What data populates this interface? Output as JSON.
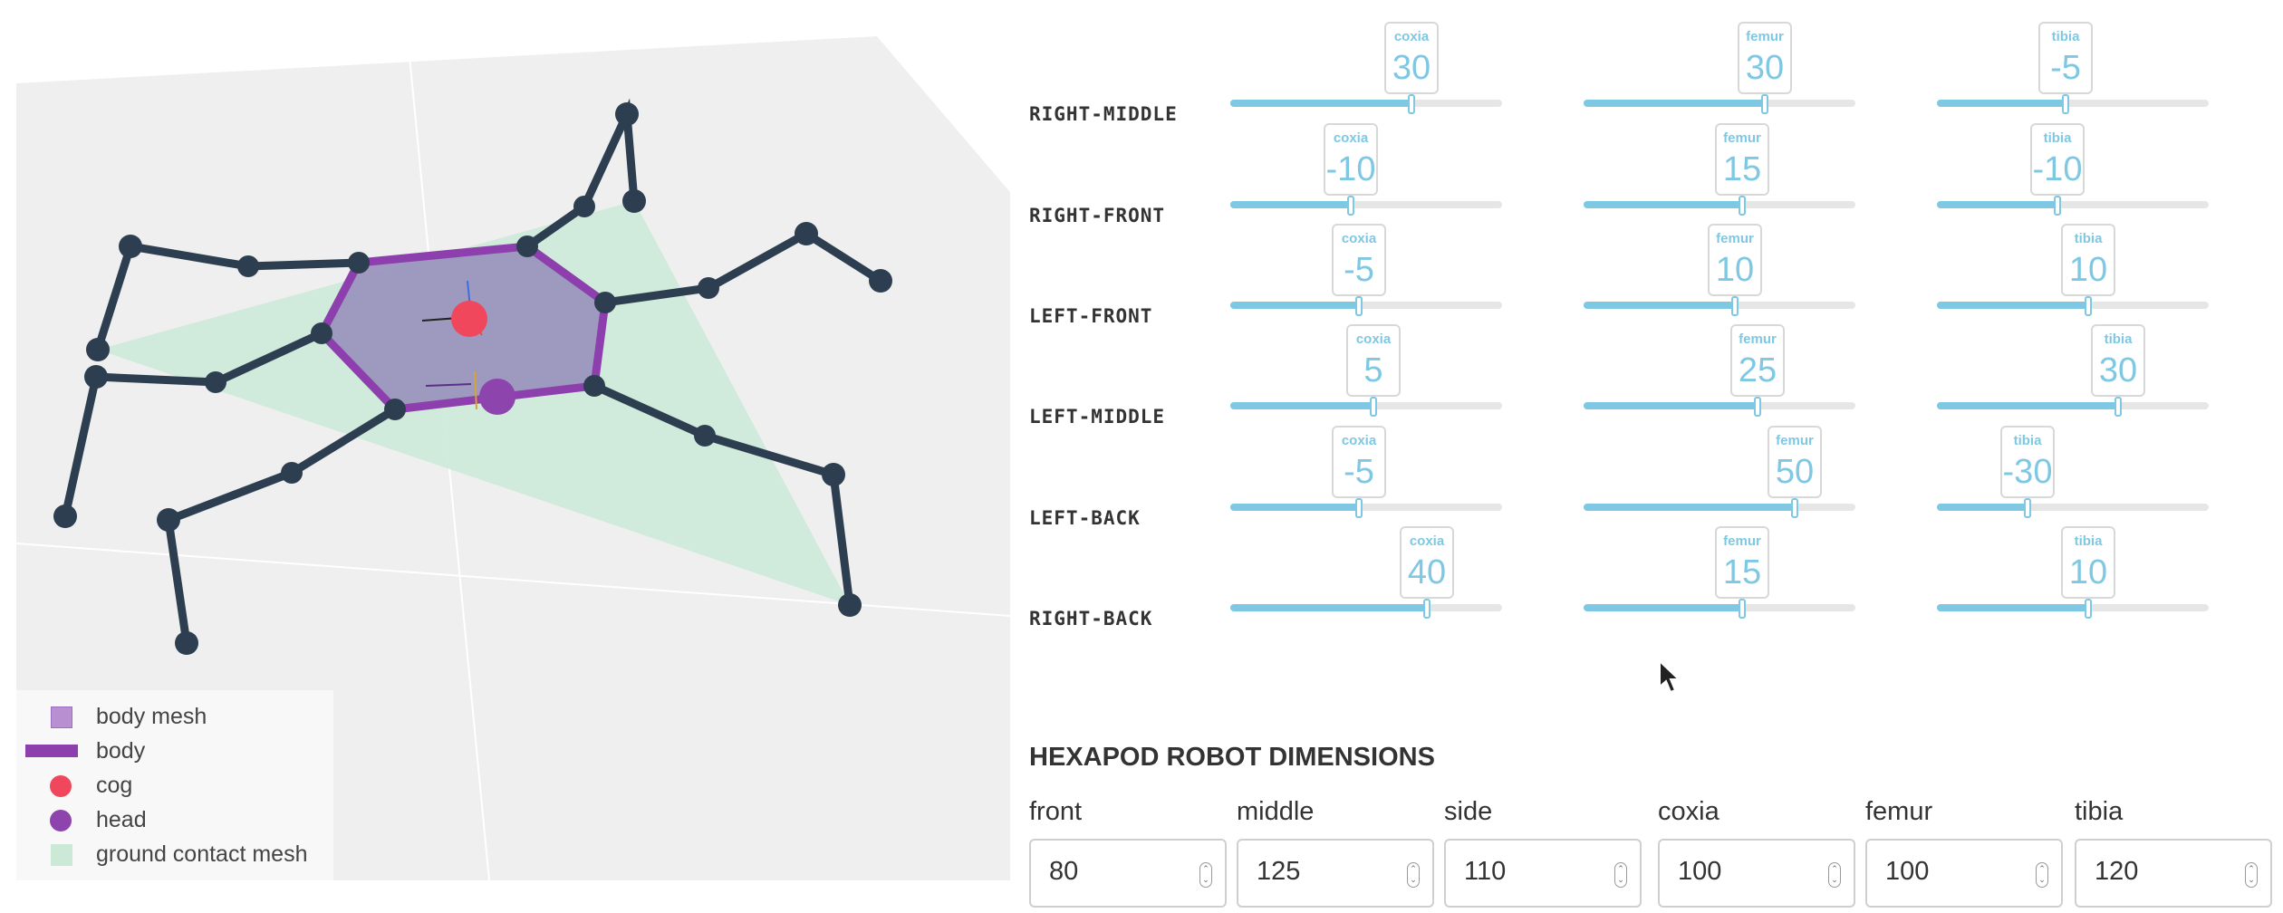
{
  "legend": {
    "items": [
      {
        "label": "body mesh",
        "type": "mesh-square",
        "color": "#b88fd0"
      },
      {
        "label": "body",
        "type": "line",
        "color": "#8e3fae"
      },
      {
        "label": "cog",
        "type": "dot",
        "color": "#f0475c"
      },
      {
        "label": "head",
        "type": "dot",
        "color": "#8e44ad"
      },
      {
        "label": "ground contact mesh",
        "type": "mesh-square",
        "color": "#cce9d8"
      }
    ]
  },
  "colors": {
    "slider_accent": "#7ec8e3",
    "leg_color": "#2c3e50",
    "body_outline": "#8e3fae",
    "body_fill": "#9b95bd",
    "cog": "#f0475c",
    "head": "#8e44ad",
    "ground_mesh": "#cce9d8"
  },
  "legs": [
    {
      "name": "RIGHT-MIDDLE",
      "coxia": 30,
      "femur": 30,
      "tibia": -5
    },
    {
      "name": "RIGHT-FRONT",
      "coxia": -10,
      "femur": 15,
      "tibia": -10
    },
    {
      "name": "LEFT-FRONT",
      "coxia": -5,
      "femur": 10,
      "tibia": 10
    },
    {
      "name": "LEFT-MIDDLE",
      "coxia": 5,
      "femur": 25,
      "tibia": 30
    },
    {
      "name": "LEFT-BACK",
      "coxia": -5,
      "femur": 50,
      "tibia": -30
    },
    {
      "name": "RIGHT-BACK",
      "coxia": 40,
      "femur": 15,
      "tibia": 10
    }
  ],
  "joint_labels": {
    "coxia": "coxia",
    "femur": "femur",
    "tibia": "tibia"
  },
  "slider_range": [
    -90,
    90
  ],
  "dimensions": {
    "title": "HEXAPOD ROBOT DIMENSIONS",
    "fields": [
      {
        "label": "front",
        "value": "80"
      },
      {
        "label": "middle",
        "value": "125"
      },
      {
        "label": "side",
        "value": "110"
      },
      {
        "label": "coxia",
        "value": "100"
      },
      {
        "label": "femur",
        "value": "100"
      },
      {
        "label": "tibia",
        "value": "120"
      }
    ]
  }
}
